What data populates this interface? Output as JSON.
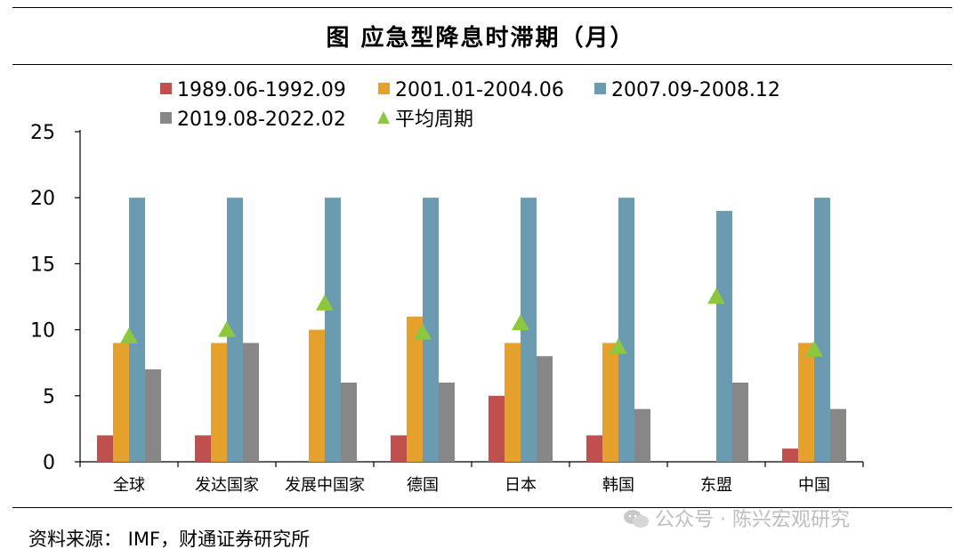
{
  "title": "图 应急型降息时滞期（月）",
  "source": "资料来源： IMF，财通证券研究所",
  "watermark": "公众号 · 陈兴宏观研究",
  "colors": {
    "s1": "#C0504D",
    "s2": "#E6A02C",
    "s3": "#6A9BB0",
    "s4": "#878787",
    "avg": "#8DC63F"
  },
  "chart_data": {
    "type": "bar",
    "title": "应急型降息时滞期（月）",
    "xlabel": "",
    "ylabel": "",
    "ylim": [
      0,
      25
    ],
    "yticks": [
      0,
      5,
      10,
      15,
      20,
      25
    ],
    "legend_position": "top",
    "categories": [
      "全球",
      "发达国家",
      "发展中国家",
      "德国",
      "日本",
      "韩国",
      "东盟",
      "中国"
    ],
    "series": [
      {
        "name": "1989.06-1992.09",
        "values": [
          2,
          2,
          0,
          2,
          5,
          2,
          0,
          1
        ]
      },
      {
        "name": "2001.01-2004.06",
        "values": [
          9,
          9,
          10,
          11,
          9,
          9,
          0,
          9
        ]
      },
      {
        "name": "2007.09-2008.12",
        "values": [
          20,
          20,
          20,
          20,
          20,
          20,
          19,
          20
        ]
      },
      {
        "name": "2019.08-2022.02",
        "values": [
          7,
          9,
          6,
          6,
          8,
          4,
          6,
          4
        ]
      }
    ],
    "average": {
      "name": "平均周期",
      "values": [
        9.5,
        10,
        12,
        9.8,
        10.5,
        8.7,
        12.5,
        8.5
      ]
    }
  }
}
